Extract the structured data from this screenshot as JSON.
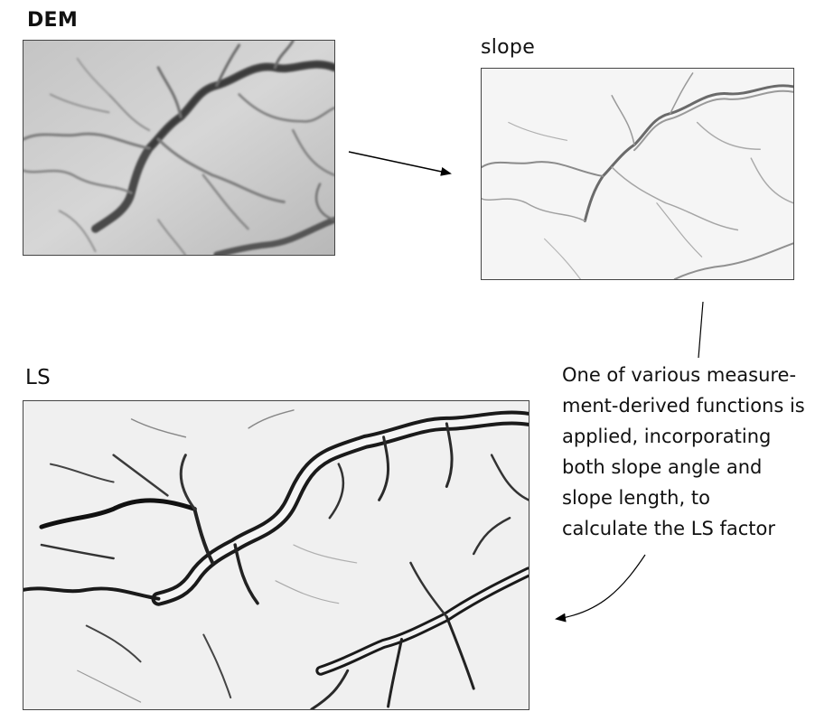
{
  "panels": {
    "dem": {
      "label": "DEM"
    },
    "slope": {
      "label": "slope"
    },
    "ls": {
      "label": "LS"
    }
  },
  "caption": "One of various measure-\nment-derived functions is\napplied, incorporating\nboth slope angle and\nslope length, to\ncalculate the LS factor",
  "colors": {
    "dem_dark": "#3d3d3d",
    "dem_light": "#d8d8d8",
    "slope_bg": "#f4f4f4",
    "ls_dark": "#111111",
    "ls_bg": "#f2f2f2",
    "arrow": "#000000"
  }
}
